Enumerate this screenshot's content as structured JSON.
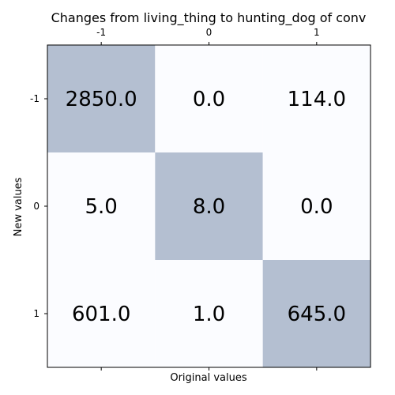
{
  "chart_data": {
    "type": "heatmap",
    "title": "Changes from living_thing to hunting_dog of conv",
    "xlabel": "Original values",
    "ylabel": "New values",
    "x_categories": [
      "-1",
      "0",
      "1"
    ],
    "y_categories": [
      "-1",
      "0",
      "1"
    ],
    "x_tick_position": "top-and-bottom",
    "grid": false,
    "values": [
      [
        2850.0,
        0.0,
        114.0
      ],
      [
        5.0,
        8.0,
        0.0
      ],
      [
        601.0,
        1.0,
        645.0
      ]
    ],
    "value_labels": [
      [
        "2850.0",
        "0.0",
        "114.0"
      ],
      [
        "5.0",
        "8.0",
        "0.0"
      ],
      [
        "601.0",
        "1.0",
        "645.0"
      ]
    ],
    "highlight_diagonal": true,
    "colors": {
      "diagonal_cell": "#b4bfd1",
      "off_diagonal_cell": "#fbfcff",
      "frame": "#000000",
      "text": "#000000"
    }
  }
}
